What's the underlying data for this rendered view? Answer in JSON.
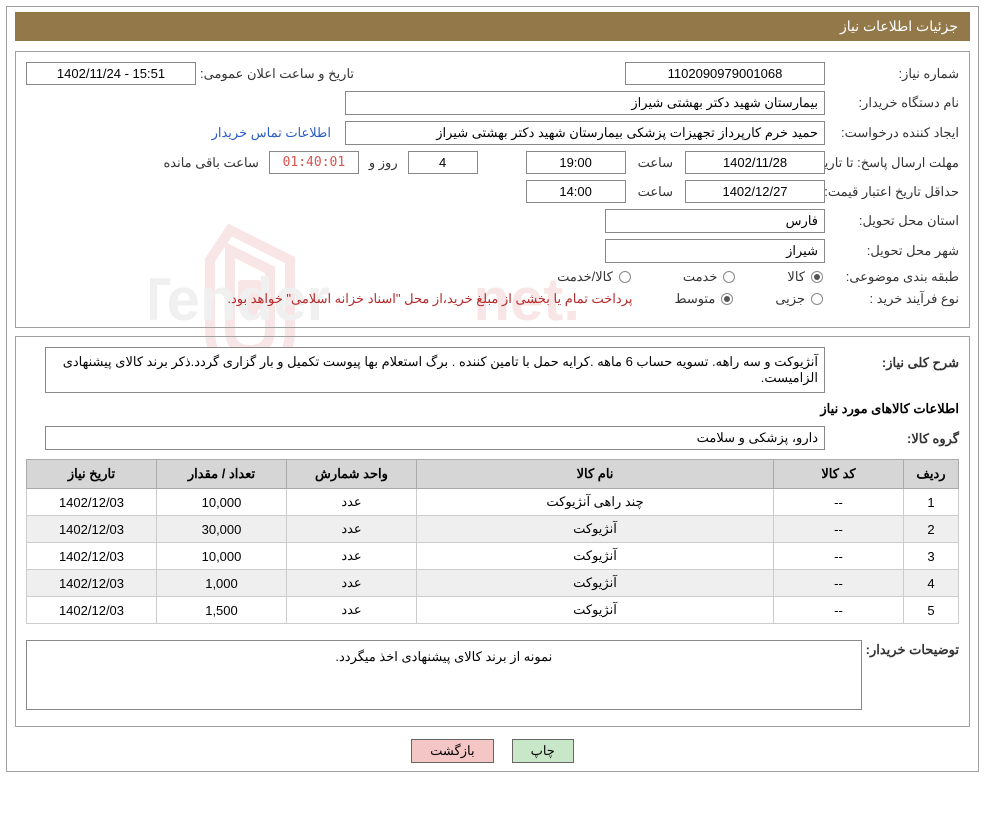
{
  "titleBar": "جزئیات اطلاعات نیاز",
  "fields": {
    "needNumberLabel": "شماره نیاز:",
    "needNumber": "1102090979001068",
    "announceLabel": "تاریخ و ساعت اعلان عمومی:",
    "announceValue": "1402/11/24 - 15:51",
    "buyerOrgLabel": "نام دستگاه خریدار:",
    "buyerOrg": "بیمارستان شهید دکتر بهشتی شیراز",
    "requesterLabel": "ایجاد کننده درخواست:",
    "requester": "حمید خرم کارپرداز تجهیزات پزشکی بیمارستان شهید دکتر بهشتی شیراز",
    "contactLink": "اطلاعات تماس خریدار",
    "responseDeadlineLabel": "مهلت ارسال پاسخ: تا تاریخ:",
    "responseDate": "1402/11/28",
    "timeWord": "ساعت",
    "responseTime": "19:00",
    "daysWord": "روز و",
    "daysValue": "4",
    "countdown": "01:40:01",
    "remainWord": "ساعت باقی مانده",
    "priceValidityLabel": "حداقل تاریخ اعتبار قیمت: تا تاریخ:",
    "priceValidityDate": "1402/12/27",
    "priceValidityTime": "14:00",
    "deliveryProvinceLabel": "استان محل تحویل:",
    "deliveryProvince": "فارس",
    "deliveryCityLabel": "شهر محل تحویل:",
    "deliveryCity": "شیراز",
    "categoryLabel": "طبقه بندی موضوعی:",
    "catGoods": "کالا",
    "catService": "خدمت",
    "catGoodsService": "کالا/خدمت",
    "purchaseTypeLabel": "نوع فرآیند خرید :",
    "ptPartial": "جزیی",
    "ptMedium": "متوسط",
    "purchaseNote": "پرداخت تمام یا بخشی از مبلغ خرید،از محل \"اسناد خزانه اسلامی\" خواهد بود.",
    "needDescLabel": "شرح کلی نیاز:",
    "needDesc": "آنژیوکت و سه راهه. تسویه حساب 6 ماهه .کرایه حمل با تامین کننده . برگ استعلام بها پیوست تکمیل و بار گزاری گردد.ذکر برند کالای پیشنهادی الزامیست.",
    "itemsHeader": "اطلاعات کالاهای مورد نیاز",
    "groupLabel": "گروه کالا:",
    "groupValue": "دارو، پزشکی و سلامت",
    "buyerNotesLabel": "توضیحات خریدار:",
    "buyerNotes": "نمونه از برند کالای پیشنهادی اخذ میگردد."
  },
  "table": {
    "headers": {
      "row": "ردیف",
      "code": "کد کالا",
      "name": "نام کالا",
      "unit": "واحد شمارش",
      "qty": "تعداد / مقدار",
      "needDate": "تاریخ نیاز"
    },
    "rows": [
      {
        "row": "1",
        "code": "--",
        "name": "چند راهی آنژیوکت",
        "unit": "عدد",
        "qty": "10,000",
        "date": "1402/12/03"
      },
      {
        "row": "2",
        "code": "--",
        "name": "آنژیوکت",
        "unit": "عدد",
        "qty": "30,000",
        "date": "1402/12/03"
      },
      {
        "row": "3",
        "code": "--",
        "name": "آنژیوکت",
        "unit": "عدد",
        "qty": "10,000",
        "date": "1402/12/03"
      },
      {
        "row": "4",
        "code": "--",
        "name": "آنژیوکت",
        "unit": "عدد",
        "qty": "1,000",
        "date": "1402/12/03"
      },
      {
        "row": "5",
        "code": "--",
        "name": "آنژیوکت",
        "unit": "عدد",
        "qty": "1,500",
        "date": "1402/12/03"
      }
    ]
  },
  "buttons": {
    "print": "چاپ",
    "back": "بازگشت"
  },
  "colors": {
    "titleBg": "#93784a",
    "headerBg": "#d6d6d6",
    "altRow": "#efefef",
    "linkColor": "#2a5cc4",
    "noteColor": "#b52a2a",
    "countdownColor": "#d9534f",
    "printBtn": "#c8e6c8",
    "backBtn": "#f4c6c6"
  },
  "tableColWidths": [
    "55px",
    "130px",
    "auto",
    "130px",
    "130px",
    "130px"
  ]
}
